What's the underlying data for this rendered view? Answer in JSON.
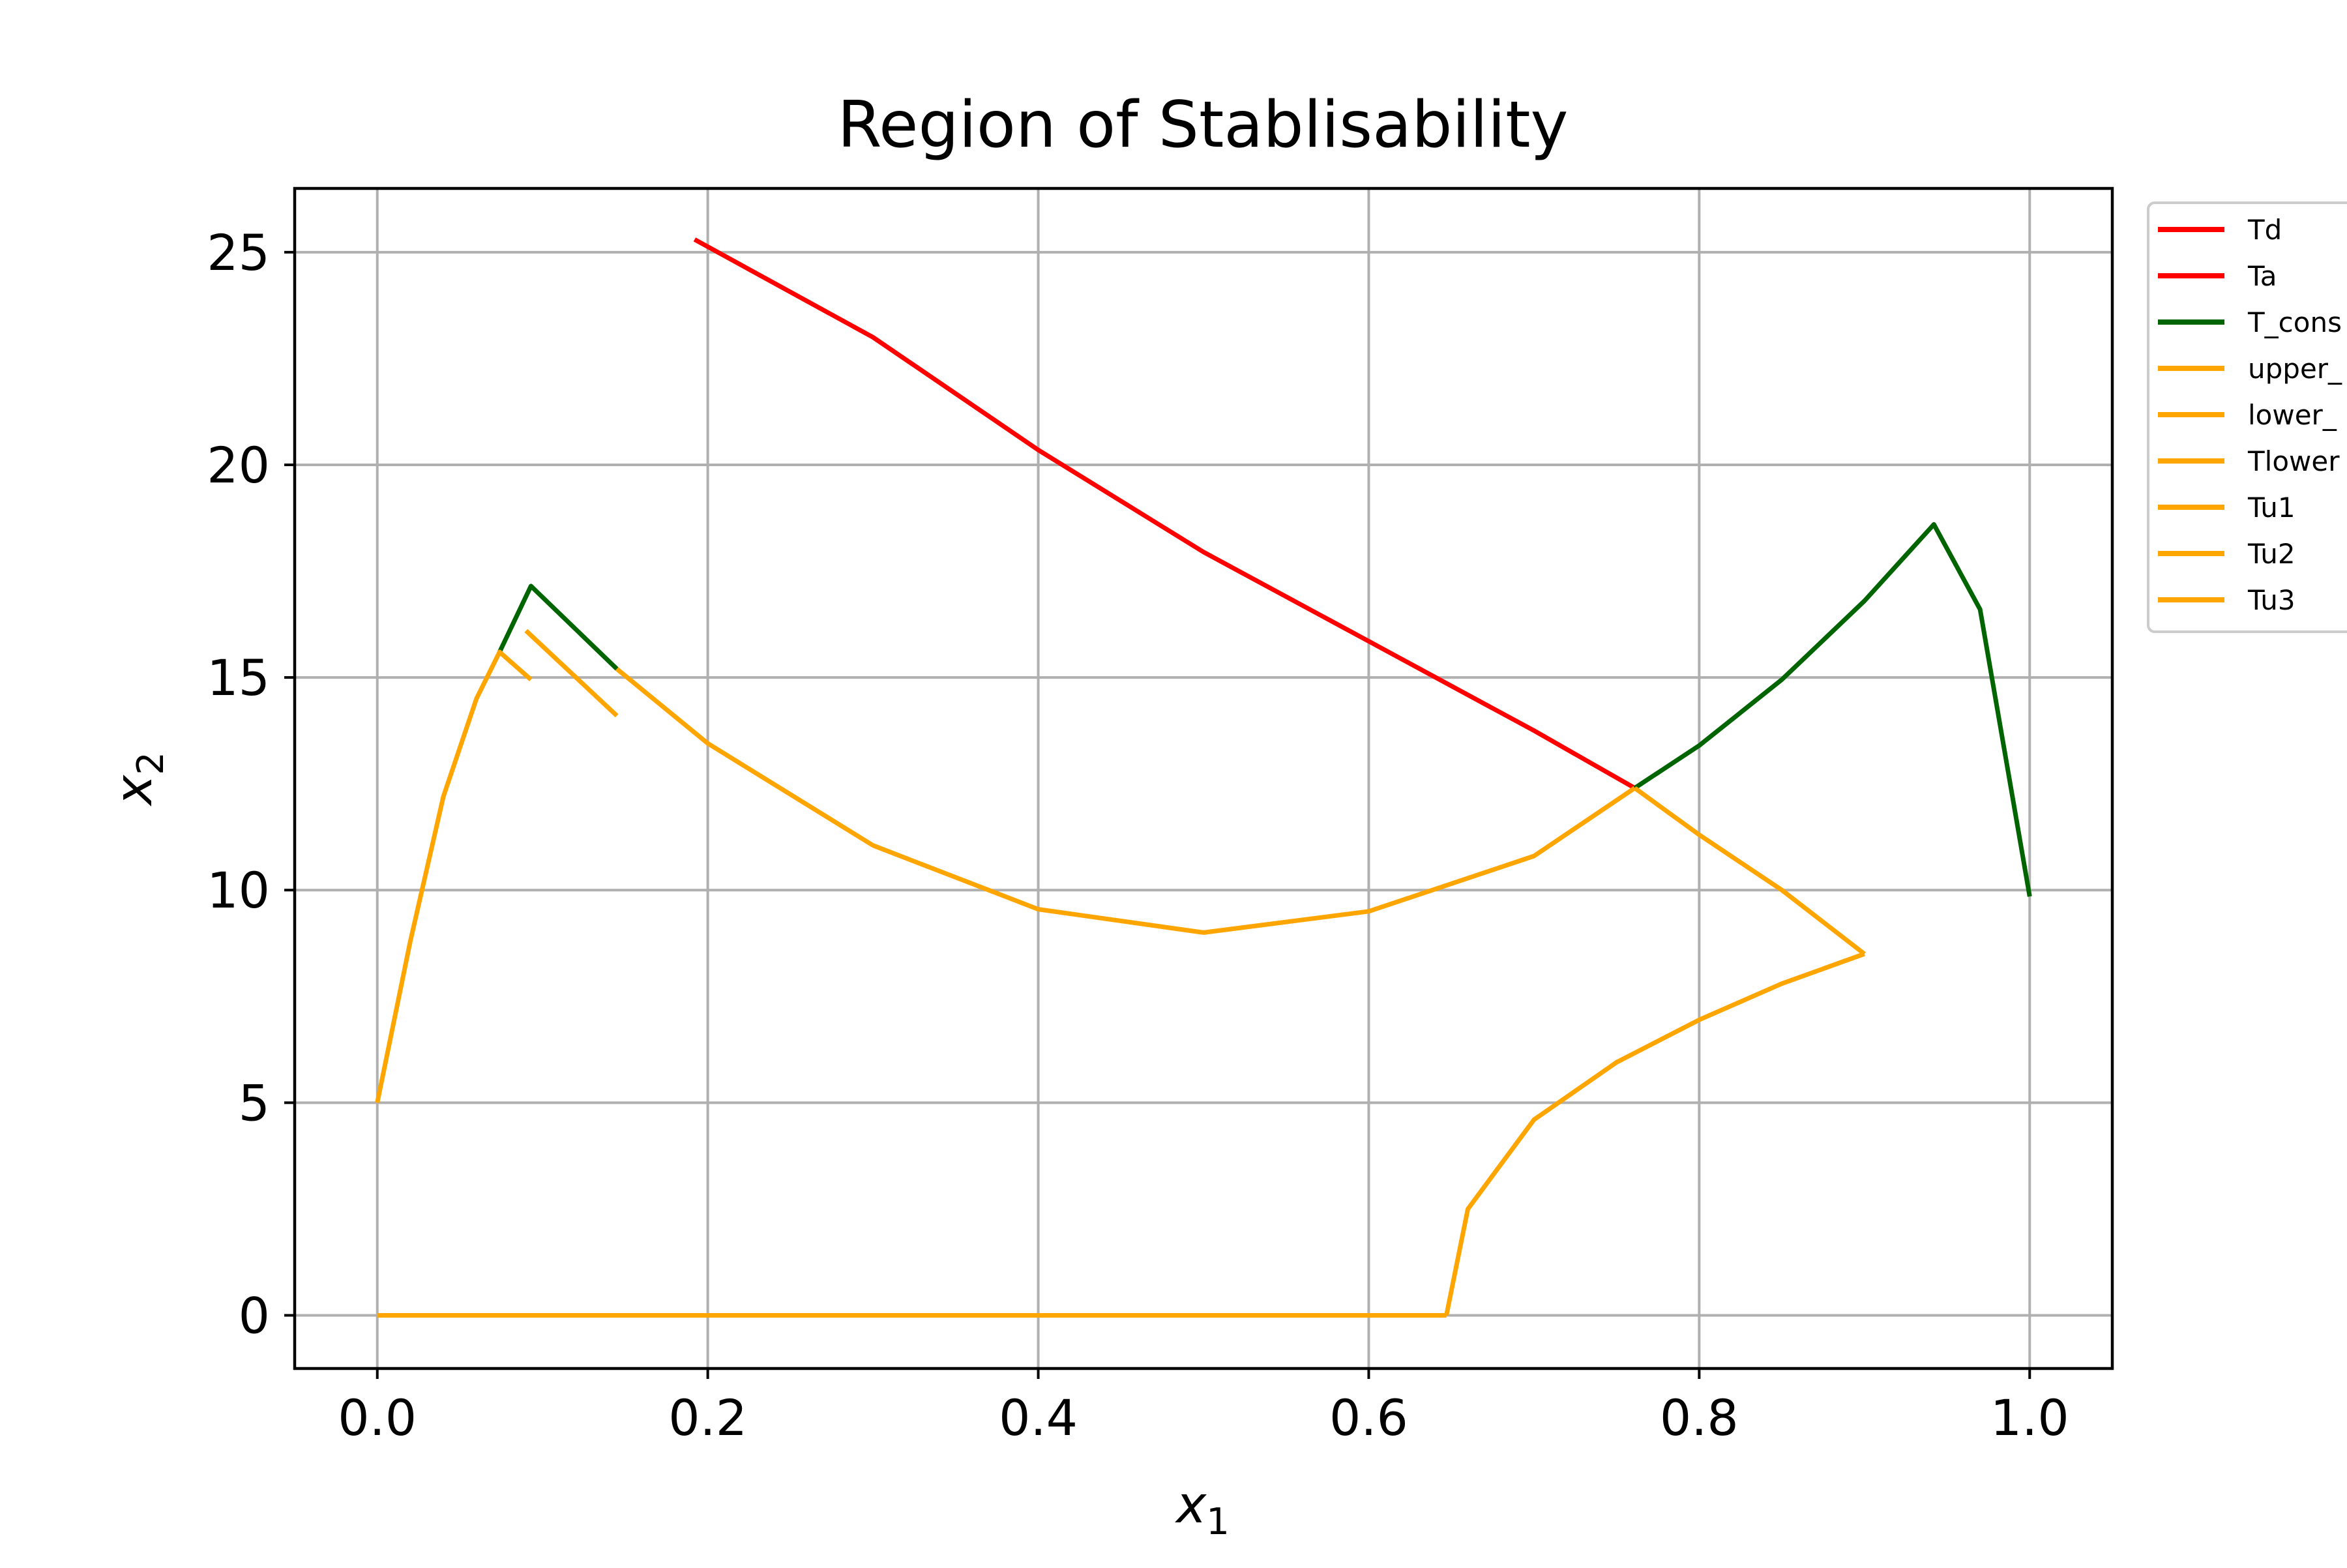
{
  "chart_data": {
    "type": "line",
    "title": "Region of Stablisability",
    "xlabel_main": "x",
    "xlabel_sub": "1",
    "ylabel_main": "x",
    "ylabel_sub": "2",
    "xlim": [
      -0.05,
      1.05
    ],
    "ylim": [
      -1.25,
      26.5
    ],
    "xticks": [
      0.0,
      0.2,
      0.4,
      0.6,
      0.8,
      1.0
    ],
    "xtick_labels": [
      "0.0",
      "0.2",
      "0.4",
      "0.6",
      "0.8",
      "1.0"
    ],
    "yticks": [
      0,
      5,
      10,
      15,
      20,
      25
    ],
    "ytick_labels": [
      "0",
      "5",
      "10",
      "15",
      "20",
      "25"
    ],
    "grid": true,
    "legend_position": "outside-right-top",
    "series": [
      {
        "name": "Td",
        "color": "#ff0000",
        "points": [
          [
            0.192,
            25.3
          ],
          [
            0.3,
            23.0
          ],
          [
            0.4,
            20.35
          ],
          [
            0.5,
            17.95
          ],
          [
            0.6,
            15.85
          ],
          [
            0.7,
            13.75
          ],
          [
            0.761,
            12.4
          ]
        ]
      },
      {
        "name": "Ta",
        "color": "#ff0000",
        "points": []
      },
      {
        "name": "T_cons",
        "color": "#006400",
        "points": [
          [
            0.074,
            15.6
          ],
          [
            0.093,
            17.15
          ],
          [
            0.145,
            15.2
          ]
        ],
        "extra_segments": [
          [
            [
              0.761,
              12.4
            ],
            [
              0.8,
              13.4
            ],
            [
              0.85,
              14.95
            ],
            [
              0.9,
              16.8
            ],
            [
              0.942,
              18.6
            ],
            [
              0.97,
              16.6
            ],
            [
              1.0,
              9.85
            ]
          ]
        ]
      },
      {
        "name": "upper_",
        "color": "#ffa500",
        "points": [
          [
            0.145,
            15.2
          ],
          [
            0.2,
            13.45
          ],
          [
            0.3,
            11.05
          ],
          [
            0.4,
            9.55
          ],
          [
            0.5,
            9.0
          ],
          [
            0.6,
            9.5
          ],
          [
            0.7,
            10.8
          ],
          [
            0.761,
            12.4
          ]
        ]
      },
      {
        "name": "lower_",
        "color": "#ffa500",
        "points": [
          [
            0.0,
            0.0
          ],
          [
            0.647,
            0.0
          ]
        ]
      },
      {
        "name": "Tlower",
        "color": "#ffa500",
        "points": [
          [
            0.647,
            0.0
          ],
          [
            0.66,
            2.5
          ],
          [
            0.7,
            4.6
          ],
          [
            0.75,
            5.95
          ],
          [
            0.8,
            6.95
          ],
          [
            0.85,
            7.8
          ],
          [
            0.9,
            8.5
          ]
        ]
      },
      {
        "name": "Tu1",
        "color": "#ffa500",
        "points": [
          [
            0.0,
            5.0
          ],
          [
            0.02,
            8.8
          ],
          [
            0.04,
            12.2
          ],
          [
            0.06,
            14.5
          ],
          [
            0.074,
            15.6
          ],
          [
            0.093,
            14.95
          ]
        ]
      },
      {
        "name": "Tu2",
        "color": "#ffa500",
        "points": [
          [
            0.09,
            16.1
          ],
          [
            0.145,
            14.1
          ]
        ]
      },
      {
        "name": "Tu3",
        "color": "#ffa500",
        "points": [
          [
            0.761,
            12.4
          ],
          [
            0.8,
            11.3
          ],
          [
            0.85,
            10.0
          ],
          [
            0.9,
            8.5
          ]
        ]
      }
    ]
  }
}
